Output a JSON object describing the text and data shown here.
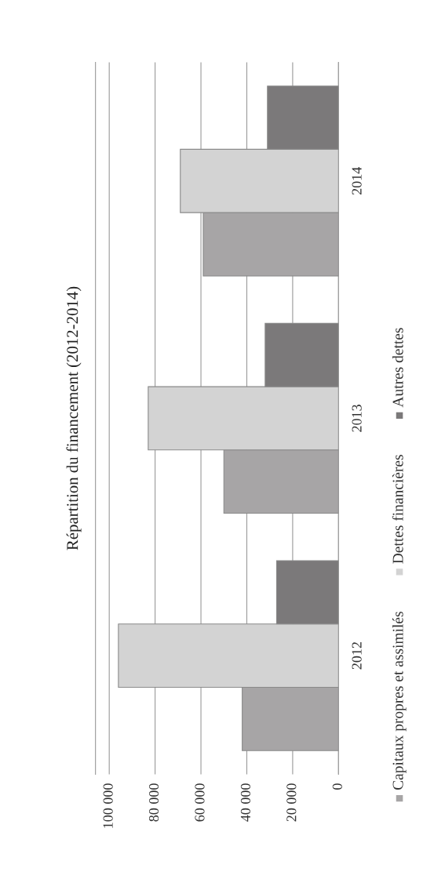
{
  "chart_data": {
    "type": "bar",
    "orientation": "horizontal",
    "title": "Répartition du financement (2012-2014)",
    "categories": [
      "2014",
      "2013",
      "2012"
    ],
    "series": [
      {
        "name": "Capitaux propres et assimilés",
        "color": "#a7a5a6",
        "values": [
          59000,
          50000,
          42000
        ]
      },
      {
        "name": "Dettes financières",
        "color": "#d3d3d3",
        "values": [
          69000,
          83000,
          96000
        ]
      },
      {
        "name": "Autres dettes",
        "color": "#7b797a",
        "values": [
          31000,
          32000,
          27000
        ]
      }
    ],
    "xlim": [
      106000,
      0
    ],
    "xticks": [
      0,
      {
        "value": 20000,
        "label": "20 000"
      },
      {
        "value": 40000,
        "label": "40 000"
      },
      {
        "value": 60000,
        "label": "60 000"
      },
      {
        "value": 80000,
        "label": "80 000"
      },
      {
        "value": 100000,
        "label": "100 000"
      }
    ],
    "grid": "x",
    "legend": "right"
  }
}
